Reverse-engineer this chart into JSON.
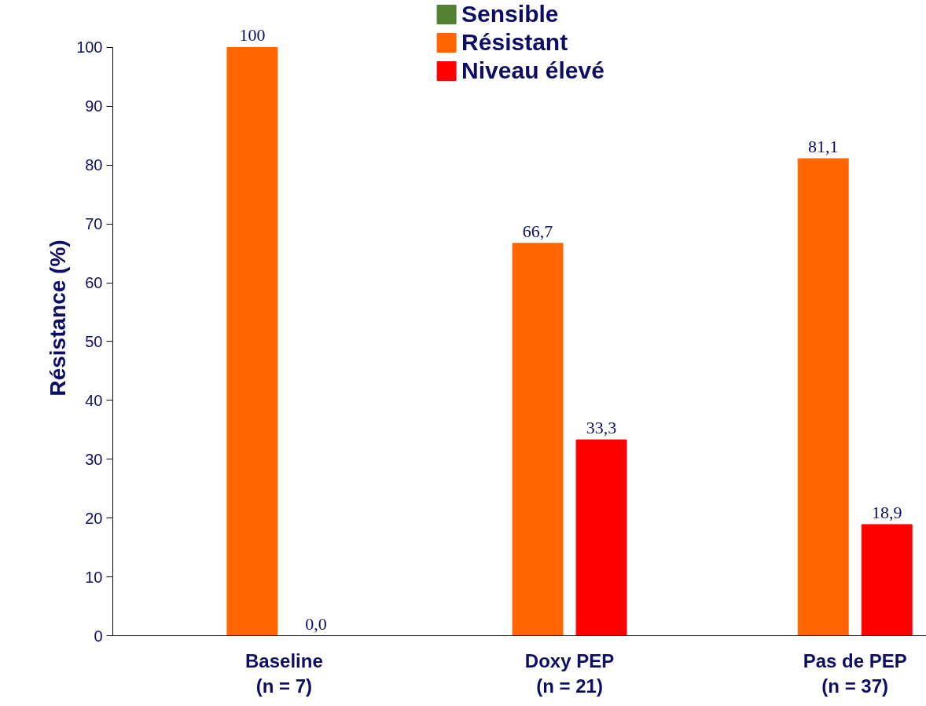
{
  "chart_data": {
    "type": "bar",
    "ylabel": "Résistance (%)",
    "categories": [
      "Baseline\n(n = 7)",
      "Doxy PEP\n(n = 21)",
      "Pas de PEP\n(n = 37)"
    ],
    "series": [
      {
        "name": "Sensible",
        "color": "#548235",
        "values": [
          null,
          null,
          null
        ]
      },
      {
        "name": "Résistant",
        "color": "#ff6600",
        "values": [
          100,
          66.7,
          81.1
        ],
        "value_labels": [
          "100",
          "66,7",
          "81,1"
        ]
      },
      {
        "name": "Niveau élevé",
        "color": "#ff0000",
        "values": [
          0,
          33.3,
          18.9
        ],
        "value_labels": [
          "0,0",
          "33,3",
          "18,9"
        ]
      }
    ],
    "ylim": [
      0,
      100
    ],
    "yticks": [
      0,
      10,
      20,
      30,
      40,
      50,
      60,
      70,
      80,
      90,
      100
    ],
    "grid": false,
    "legend": "top"
  }
}
